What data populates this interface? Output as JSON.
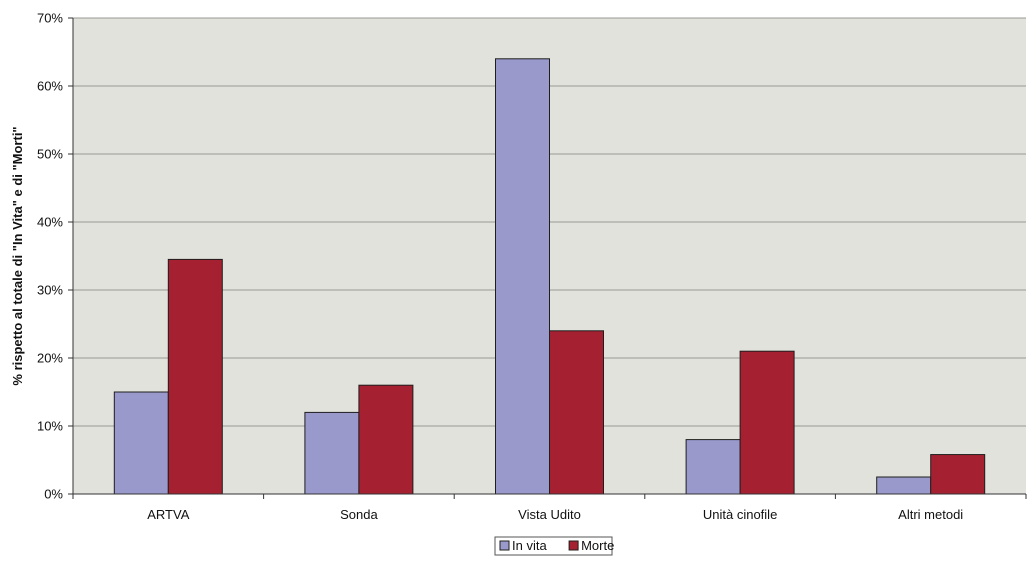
{
  "chart_data": {
    "type": "bar",
    "title": "",
    "xlabel": "",
    "ylabel": "% rispetto al totale di \"In Vita\" e di \"Morti\"",
    "categories": [
      "ARTVA",
      "Sonda",
      "Vista Udito",
      "Unità cinofile",
      "Altri metodi"
    ],
    "series": [
      {
        "name": "In vita",
        "color": "#9999cc",
        "values": [
          15,
          12,
          64,
          8,
          2.5
        ]
      },
      {
        "name": "Morte",
        "color": "#a52030",
        "values": [
          34.5,
          16,
          24,
          21,
          5.8
        ]
      }
    ],
    "ylim": [
      0,
      70
    ],
    "yticks": [
      0,
      10,
      20,
      30,
      40,
      50,
      60,
      70
    ],
    "ytick_labels": [
      "0%",
      "10%",
      "20%",
      "30%",
      "40%",
      "50%",
      "60%",
      "70%"
    ],
    "grid": true,
    "legend_position": "bottom-center",
    "plot_background": "#e2e2dc"
  }
}
